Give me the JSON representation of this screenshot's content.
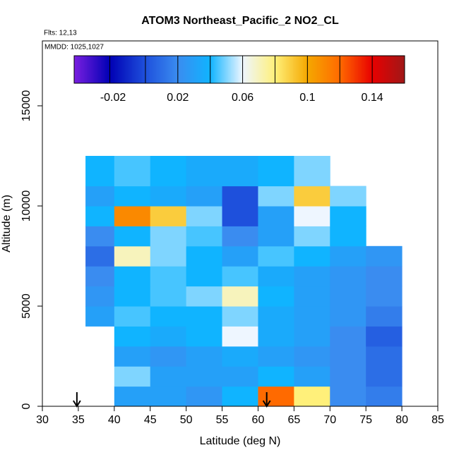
{
  "chart_data": {
    "type": "heatmap",
    "title": "ATOM3 Northeast_Pacific_2 NO2_CL",
    "annotations": [
      "Flts: 12,13",
      "MMDD: 1025,1027"
    ],
    "x_label": "Latitude (deg N)",
    "y_label": "Altitude (m)",
    "xlim": [
      30,
      85
    ],
    "xticks": [
      30,
      35,
      40,
      45,
      50,
      55,
      60,
      65,
      70,
      75,
      80,
      85
    ],
    "ylim": [
      0,
      18240
    ],
    "yticks": [
      0,
      5000,
      10000,
      15000
    ],
    "x_edges": [
      36,
      40,
      45,
      50,
      55,
      60,
      65,
      70,
      75,
      80
    ],
    "y_edges": [
      0,
      1000,
      2000,
      3000,
      4000,
      5000,
      6000,
      7000,
      8000,
      9000,
      10000,
      11000,
      12500
    ],
    "z": [
      [
        null,
        0.03,
        0.03,
        0.025,
        0.04,
        0.12,
        0.08,
        0.02,
        0.015
      ],
      [
        null,
        0.05,
        0.03,
        0.03,
        0.03,
        0.04,
        0.03,
        0.02,
        0.01
      ],
      [
        null,
        0.03,
        0.025,
        0.03,
        0.035,
        0.03,
        0.025,
        0.02,
        0.01
      ],
      [
        null,
        0.04,
        0.035,
        0.04,
        0.06,
        0.035,
        0.03,
        0.02,
        0.005
      ],
      [
        0.03,
        0.045,
        0.04,
        0.04,
        0.05,
        0.035,
        0.03,
        0.025,
        0.015
      ],
      [
        0.025,
        0.04,
        0.045,
        0.05,
        0.07,
        0.04,
        0.03,
        0.025,
        0.02
      ],
      [
        0.02,
        0.04,
        0.045,
        0.04,
        0.045,
        0.035,
        0.03,
        0.025,
        0.02
      ],
      [
        0.01,
        0.07,
        0.05,
        0.04,
        0.03,
        0.045,
        0.04,
        0.03,
        0.025
      ],
      [
        0.02,
        0.04,
        0.05,
        0.045,
        0.02,
        0.03,
        0.05,
        0.04,
        null
      ],
      [
        0.04,
        0.11,
        0.09,
        0.05,
        0.0,
        0.03,
        0.06,
        0.04,
        null
      ],
      [
        0.03,
        0.04,
        0.035,
        0.03,
        0.0,
        0.05,
        0.09,
        0.05,
        null
      ],
      [
        0.04,
        0.045,
        0.04,
        0.035,
        0.035,
        0.04,
        0.05,
        null,
        null
      ]
    ],
    "arrows": [
      34.8,
      61.2
    ],
    "colorbar": {
      "lim": [
        -0.044,
        0.16
      ],
      "ticks": [
        -0.02,
        0.02,
        0.06,
        0.1,
        0.14
      ],
      "breaks": [
        -0.044,
        -0.022,
        0.0,
        0.02,
        0.04,
        0.06,
        0.08,
        0.1,
        0.12,
        0.14,
        0.16
      ],
      "colors": [
        "#7a1fe0",
        "#0000b4",
        "#1e50dc",
        "#3a8cf0",
        "#10b4ff",
        "#eef6ff",
        "#fff07a",
        "#f5a800",
        "#ff6a00",
        "#e80000",
        "#a01818"
      ]
    }
  }
}
